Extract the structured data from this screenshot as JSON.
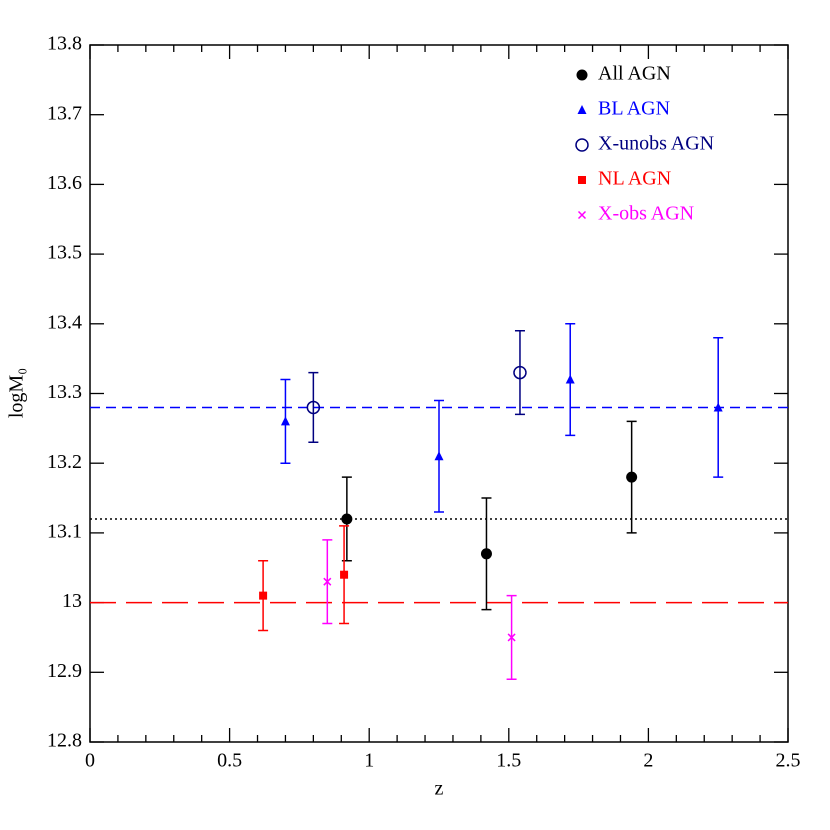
{
  "chart_data": {
    "type": "scatter",
    "xlabel": "z",
    "ylabel": "logM₀",
    "xlim": [
      0,
      2.5
    ],
    "ylim": [
      12.8,
      13.8
    ],
    "xticks": [
      0,
      0.5,
      1,
      1.5,
      2,
      2.5
    ],
    "xminorticks": [
      0.1,
      0.2,
      0.3,
      0.4,
      0.6,
      0.7,
      0.8,
      0.9,
      1.1,
      1.2,
      1.3,
      1.4,
      1.6,
      1.7,
      1.8,
      1.9,
      2.1,
      2.2,
      2.3,
      2.4
    ],
    "yticks": [
      12.8,
      12.9,
      13,
      13.1,
      13.2,
      13.3,
      13.4,
      13.5,
      13.6,
      13.7,
      13.8
    ],
    "legend": "top-right",
    "hlines": [
      {
        "value": 13.28,
        "color": "#0000ff",
        "style": "dashed"
      },
      {
        "value": 13.12,
        "color": "#000000",
        "style": "dotted"
      },
      {
        "value": 13,
        "color": "#ff0000",
        "style": "longdash"
      }
    ],
    "series": [
      {
        "name": "All AGN",
        "color": "#000000",
        "marker": "circle-filled",
        "x": [
          0.92,
          1.42,
          1.94
        ],
        "values": [
          13.12,
          13.07,
          13.18
        ],
        "errors": [
          0.06,
          0.08,
          0.08
        ]
      },
      {
        "name": "BL AGN",
        "color": "#0000ff",
        "marker": "triangle",
        "x": [
          0.7,
          1.25,
          1.72,
          2.25
        ],
        "values": [
          13.26,
          13.21,
          13.32,
          13.28
        ],
        "errors": [
          0.06,
          0.08,
          0.08,
          0.1
        ]
      },
      {
        "name": "X-unobs AGN",
        "color": "#000080",
        "marker": "circle-open",
        "x": [
          0.8,
          1.54
        ],
        "values": [
          13.28,
          13.33
        ],
        "errors": [
          0.05,
          0.06
        ]
      },
      {
        "name": "NL AGN",
        "color": "#ff0000",
        "marker": "square",
        "x": [
          0.62,
          0.91
        ],
        "values": [
          13.01,
          13.04
        ],
        "errors": [
          0.05,
          0.07
        ]
      },
      {
        "name": "X-obs AGN",
        "color": "#ff00ff",
        "marker": "x",
        "x": [
          0.85,
          1.51
        ],
        "values": [
          13.03,
          12.95
        ],
        "errors": [
          0.06,
          0.06
        ]
      }
    ]
  }
}
